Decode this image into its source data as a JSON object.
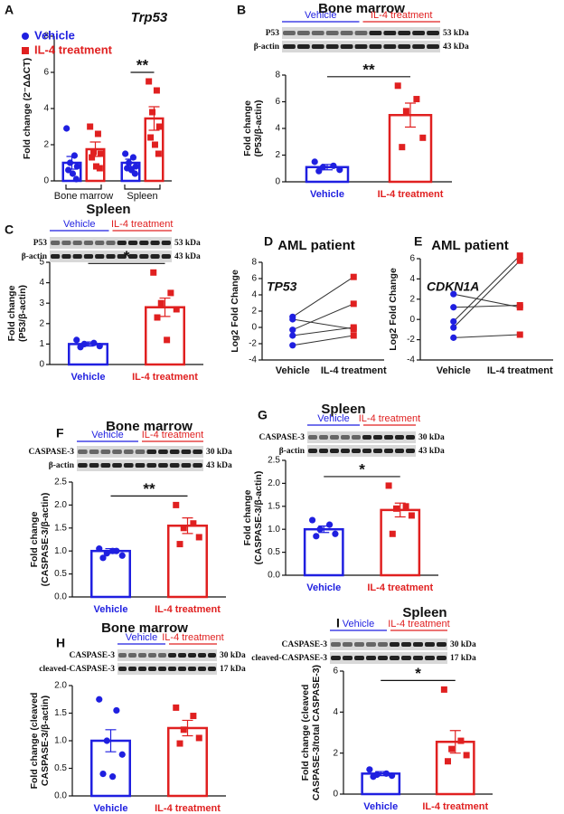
{
  "chart_data": [
    {
      "panel": "A",
      "type": "grouped_bar",
      "title": "Trp53",
      "ylabel": [
        "Fold change (2⁻ΔΔCT)"
      ],
      "categories": [
        "Bone marrow",
        "Spleen"
      ],
      "series": [
        {
          "name": "Vehicle",
          "color": "#1f1fe0",
          "marker": "circle",
          "values": [
            1.0,
            1.0
          ],
          "errors": [
            0.35,
            0.2
          ],
          "points": [
            [
              2.9,
              1.4,
              1.0,
              0.8,
              0.6,
              0.4,
              0.1
            ],
            [
              1.5,
              1.3,
              1.0,
              0.8,
              0.7,
              0.6,
              0.4
            ]
          ]
        },
        {
          "name": "IL-4 treatment",
          "color": "#e02020",
          "marker": "square",
          "values": [
            1.75,
            3.45
          ],
          "errors": [
            0.4,
            0.65
          ],
          "points": [
            [
              3.0,
              2.6,
              1.6,
              1.5,
              1.3,
              0.8,
              0.7
            ],
            [
              5.5,
              5.0,
              3.8,
              3.0,
              2.4,
              2.0,
              1.5
            ]
          ]
        }
      ],
      "ylim": [
        0,
        8
      ],
      "yticks": [
        0,
        2,
        4,
        6,
        8
      ],
      "annotation": "**"
    },
    {
      "panel": "B",
      "type": "bar",
      "title": "Bone marrow",
      "ylabel": [
        "Fold change",
        "(P53/β-actin)"
      ],
      "blot": {
        "groups": [
          "Vehicle",
          "IL-4 treatment"
        ],
        "rows": [
          {
            "label": "P53",
            "size": "53 kDa"
          },
          {
            "label": "β-actin",
            "size": "43 kDa"
          }
        ]
      },
      "categories": [
        "Vehicle",
        "IL-4 treatment"
      ],
      "colors": [
        "#1f1fe0",
        "#e02020"
      ],
      "markers": [
        "circle",
        "square"
      ],
      "values": [
        1.1,
        5.0
      ],
      "errors": [
        0.2,
        0.9
      ],
      "points": [
        [
          1.5,
          1.2,
          1.1,
          0.9,
          0.8
        ],
        [
          7.2,
          6.2,
          5.3,
          3.3,
          2.6
        ]
      ],
      "ylim": [
        0,
        8
      ],
      "yticks": [
        0,
        2,
        4,
        6,
        8
      ],
      "annotation": "**"
    },
    {
      "panel": "C",
      "type": "bar",
      "title": "Spleen",
      "ylabel": [
        "Fold change",
        "(P53/β-actin)"
      ],
      "blot": {
        "groups": [
          "Vehicle",
          "IL-4 treatment"
        ],
        "rows": [
          {
            "label": "P53",
            "size": "53 kDa"
          },
          {
            "label": "β-actin",
            "size": "43 kDa"
          }
        ]
      },
      "categories": [
        "Vehicle",
        "IL-4 treatment"
      ],
      "colors": [
        "#1f1fe0",
        "#e02020"
      ],
      "markers": [
        "circle",
        "square"
      ],
      "values": [
        1.0,
        2.8
      ],
      "errors": [
        0.1,
        0.45
      ],
      "points": [
        [
          1.2,
          1.05,
          1.0,
          0.9,
          0.85
        ],
        [
          4.5,
          3.5,
          3.0,
          2.7,
          2.3,
          1.2
        ]
      ],
      "ylim": [
        0,
        5
      ],
      "yticks": [
        0,
        1,
        2,
        3,
        4,
        5
      ],
      "annotation": "*"
    },
    {
      "panel": "D",
      "type": "line",
      "title": "AML patient",
      "ylabel": [
        "Log2 Fold Change"
      ],
      "annotation": "TP53",
      "categories": [
        "Vehicle",
        "IL-4 treatment"
      ],
      "colors": [
        "#1f1fe0",
        "#e02020"
      ],
      "series": [
        {
          "values": [
            1.3,
            6.2
          ]
        },
        {
          "values": [
            1.0,
            -0.2
          ]
        },
        {
          "values": [
            -0.3,
            2.9
          ]
        },
        {
          "values": [
            -1.0,
            0.0
          ]
        },
        {
          "values": [
            -2.2,
            -1.0
          ]
        }
      ],
      "ylim": [
        -4,
        8
      ],
      "yticks": [
        -4,
        -2,
        0,
        2,
        4,
        6,
        8
      ]
    },
    {
      "panel": "E",
      "type": "line",
      "title": "AML patient",
      "ylabel": [
        "Log2 Fold Change"
      ],
      "annotation": "CDKN1A",
      "categories": [
        "Vehicle",
        "IL-4 treatment"
      ],
      "colors": [
        "#1f1fe0",
        "#e02020"
      ],
      "series": [
        {
          "values": [
            2.5,
            1.2
          ]
        },
        {
          "values": [
            1.2,
            1.4
          ]
        },
        {
          "values": [
            -0.2,
            6.3
          ]
        },
        {
          "values": [
            -0.8,
            5.8
          ]
        },
        {
          "values": [
            -1.8,
            -1.5
          ]
        }
      ],
      "ylim": [
        -4,
        6
      ],
      "yticks": [
        -4,
        -2,
        0,
        2,
        4,
        6
      ]
    },
    {
      "panel": "F",
      "type": "bar",
      "title": "Bone marrow",
      "ylabel": [
        "Fold change",
        "(CASPASE-3/β-actin)"
      ],
      "blot": {
        "groups": [
          "Vehicle",
          "IL-4 treatment"
        ],
        "rows": [
          {
            "label": "CASPASE-3",
            "size": "30 kDa"
          },
          {
            "label": "β-actin",
            "size": "43 kDa"
          }
        ]
      },
      "categories": [
        "Vehicle",
        "IL-4 treatment"
      ],
      "colors": [
        "#1f1fe0",
        "#e02020"
      ],
      "markers": [
        "circle",
        "square"
      ],
      "values": [
        1.0,
        1.55
      ],
      "errors": [
        0.05,
        0.17
      ],
      "points": [
        [
          1.05,
          1.0,
          0.95,
          0.9,
          0.85,
          1.0
        ],
        [
          2.0,
          1.6,
          1.5,
          1.3,
          1.15
        ]
      ],
      "ylim": [
        0,
        2.5
      ],
      "yticks": [
        {
          "value": 0,
          "label": "0.0"
        },
        0.5,
        {
          "value": 1,
          "label": "1.0"
        },
        1.5,
        {
          "value": 2,
          "label": "2.0"
        },
        2.5
      ],
      "annotation": "**"
    },
    {
      "panel": "G",
      "type": "bar",
      "title": "Spleen",
      "ylabel": [
        "Fold change",
        "(CASPASE-3/β-actin)"
      ],
      "blot": {
        "groups": [
          "Vehicle",
          "IL-4 treatment"
        ],
        "rows": [
          {
            "label": "CASPASE-3",
            "size": "30 kDa"
          },
          {
            "label": "β-actin",
            "size": "43 kDa"
          }
        ]
      },
      "categories": [
        "Vehicle",
        "IL-4 treatment"
      ],
      "colors": [
        "#1f1fe0",
        "#e02020"
      ],
      "markers": [
        "circle",
        "square"
      ],
      "values": [
        1.0,
        1.42
      ],
      "errors": [
        0.07,
        0.15
      ],
      "points": [
        [
          1.2,
          1.1,
          1.0,
          0.9,
          0.85
        ],
        [
          1.95,
          1.5,
          1.45,
          1.3,
          0.9
        ]
      ],
      "ylim": [
        0,
        2.5
      ],
      "yticks": [
        {
          "value": 0,
          "label": "0.0"
        },
        0.5,
        {
          "value": 1,
          "label": "1.0"
        },
        1.5,
        {
          "value": 2,
          "label": "2.0"
        },
        2.5
      ],
      "annotation": "*"
    },
    {
      "panel": "H",
      "type": "bar",
      "title": "Bone marrow",
      "ylabel": [
        "Fold change (cleaved",
        "CASPASE-3/β-actin)"
      ],
      "blot": {
        "groups": [
          "Vehicle",
          "IL-4 treatment"
        ],
        "rows": [
          {
            "label": "CASPASE-3",
            "size": "30 kDa"
          },
          {
            "label": "cleaved-CASPASE-3",
            "size": "17 kDa"
          }
        ]
      },
      "categories": [
        "Vehicle",
        "IL-4 treatment"
      ],
      "colors": [
        "#1f1fe0",
        "#e02020"
      ],
      "markers": [
        "circle",
        "square"
      ],
      "values": [
        1.0,
        1.23
      ],
      "errors": [
        0.2,
        0.14
      ],
      "points": [
        [
          1.75,
          1.55,
          1.0,
          0.75,
          0.4,
          0.35
        ],
        [
          1.6,
          1.45,
          1.2,
          1.05,
          0.95
        ]
      ],
      "ylim": [
        0,
        2
      ],
      "yticks": [
        {
          "value": 0,
          "label": "0.0"
        },
        0.5,
        {
          "value": 1,
          "label": "1.0"
        },
        1.5,
        {
          "value": 2,
          "label": "2.0"
        }
      ]
    },
    {
      "panel": "I",
      "type": "bar",
      "title": "Spleen",
      "ylabel": [
        "Fold change (cleaved",
        "CASPASE-3/total CASPASE-3)"
      ],
      "blot": {
        "groups": [
          "Vehicle",
          "IL-4 treatment"
        ],
        "rows": [
          {
            "label": "CASPASE-3",
            "size": "30 kDa"
          },
          {
            "label": "cleaved-CASPASE-3",
            "size": "17 kDa"
          }
        ]
      },
      "categories": [
        "Vehicle",
        "IL-4 treatment"
      ],
      "colors": [
        "#1f1fe0",
        "#e02020"
      ],
      "markers": [
        "circle",
        "square"
      ],
      "values": [
        1.0,
        2.55
      ],
      "errors": [
        0.1,
        0.55
      ],
      "points": [
        [
          1.2,
          1.0,
          0.95,
          0.9,
          0.85
        ],
        [
          5.1,
          2.6,
          2.2,
          1.9,
          1.6
        ]
      ],
      "ylim": [
        0,
        6
      ],
      "yticks": [
        0,
        2,
        4,
        6
      ],
      "annotation": "*"
    }
  ]
}
